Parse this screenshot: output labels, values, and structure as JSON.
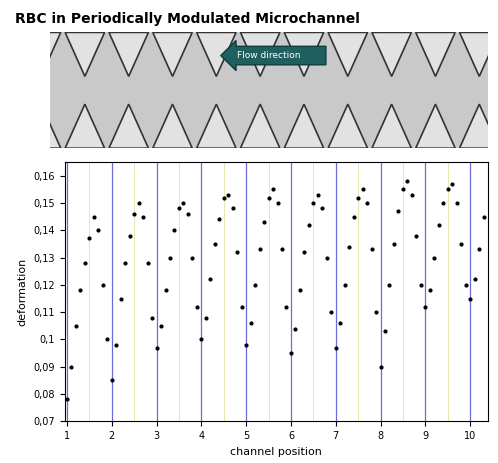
{
  "chart_data": {
    "type": "scatter",
    "title": "RBC in Periodically Modulated Microchannel",
    "annotation": "Flow direction",
    "x_label": "channel position",
    "y_label": "deformation",
    "color": "#000000",
    "marker": "o",
    "grid": true,
    "xlim": [
      0.95,
      10.4
    ],
    "ylim": [
      0.07,
      0.165
    ],
    "xticks": [
      1,
      2,
      3,
      4,
      5,
      6,
      7,
      8,
      9,
      10
    ],
    "yticks": [
      {
        "value": 0.07,
        "label": "0,07"
      },
      {
        "value": 0.08,
        "label": "0,08"
      },
      {
        "value": 0.09,
        "label": "0,09"
      },
      {
        "value": 0.1,
        "label": "0,1"
      },
      {
        "value": 0.11,
        "label": "0,11"
      },
      {
        "value": 0.12,
        "label": "0,12"
      },
      {
        "value": 0.13,
        "label": "0,13"
      },
      {
        "value": 0.14,
        "label": "0,14"
      },
      {
        "value": 0.15,
        "label": "0,15"
      },
      {
        "value": 0.16,
        "label": "0,16"
      }
    ],
    "x": [
      1.0,
      1.1,
      1.2,
      1.3,
      1.4,
      1.5,
      1.6,
      1.7,
      1.8,
      1.9,
      2.0,
      2.1,
      2.2,
      2.3,
      2.4,
      2.5,
      2.6,
      2.7,
      2.8,
      2.9,
      3.0,
      3.1,
      3.2,
      3.3,
      3.4,
      3.5,
      3.6,
      3.7,
      3.8,
      3.9,
      4.0,
      4.1,
      4.2,
      4.3,
      4.4,
      4.5,
      4.6,
      4.7,
      4.8,
      4.9,
      5.0,
      5.1,
      5.2,
      5.3,
      5.4,
      5.5,
      5.6,
      5.7,
      5.8,
      5.9,
      6.0,
      6.1,
      6.2,
      6.3,
      6.4,
      6.5,
      6.6,
      6.7,
      6.8,
      6.9,
      7.0,
      7.1,
      7.2,
      7.3,
      7.4,
      7.5,
      7.6,
      7.7,
      7.8,
      7.9,
      8.0,
      8.1,
      8.2,
      8.3,
      8.4,
      8.5,
      8.6,
      8.7,
      8.8,
      8.9,
      9.0,
      9.1,
      9.2,
      9.3,
      9.4,
      9.5,
      9.6,
      9.7,
      9.8,
      9.9,
      10.0,
      10.1,
      10.2,
      10.3
    ],
    "values": [
      0.078,
      0.09,
      0.105,
      0.118,
      0.128,
      0.137,
      0.145,
      0.14,
      0.12,
      0.1,
      0.085,
      0.098,
      0.115,
      0.128,
      0.138,
      0.146,
      0.15,
      0.145,
      0.128,
      0.108,
      0.097,
      0.105,
      0.118,
      0.13,
      0.14,
      0.148,
      0.15,
      0.146,
      0.13,
      0.112,
      0.1,
      0.108,
      0.122,
      0.135,
      0.144,
      0.152,
      0.153,
      0.148,
      0.132,
      0.112,
      0.098,
      0.106,
      0.12,
      0.133,
      0.143,
      0.152,
      0.155,
      0.15,
      0.133,
      0.112,
      0.095,
      0.104,
      0.118,
      0.132,
      0.142,
      0.15,
      0.153,
      0.148,
      0.13,
      0.11,
      0.097,
      0.106,
      0.12,
      0.134,
      0.145,
      0.152,
      0.155,
      0.15,
      0.133,
      0.11,
      0.09,
      0.103,
      0.12,
      0.135,
      0.147,
      0.155,
      0.158,
      0.153,
      0.138,
      0.12,
      0.112,
      0.118,
      0.13,
      0.142,
      0.15,
      0.155,
      0.157,
      0.15,
      0.135,
      0.12,
      0.115,
      0.122,
      0.133,
      0.145
    ]
  }
}
